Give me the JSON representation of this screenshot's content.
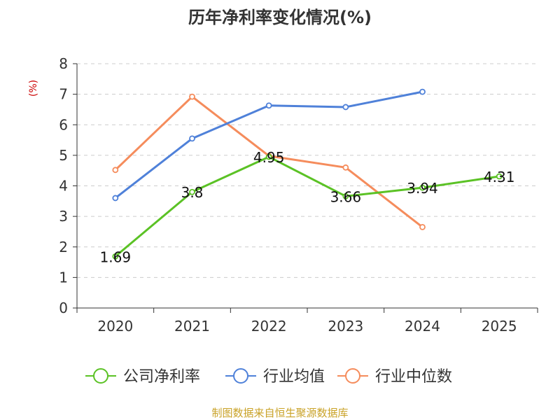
{
  "chart_data": {
    "type": "line",
    "title": "历年净利率变化情况(%)",
    "ylabel": "(%)",
    "xlabel": "",
    "categories": [
      "2020",
      "2021",
      "2022",
      "2023",
      "2024",
      "2025"
    ],
    "ylim": [
      0,
      8
    ],
    "yticks": [
      "0",
      "1",
      "2",
      "3",
      "4",
      "5",
      "6",
      "7",
      "8"
    ],
    "grid": true,
    "legend_position": "bottom",
    "series": [
      {
        "name": "公司净利率",
        "color": "#5bc225",
        "values": [
          1.69,
          3.8,
          4.95,
          3.66,
          3.94,
          4.31
        ],
        "labels": [
          "1.69",
          "3.8",
          "4.95",
          "3.66",
          "3.94",
          "4.31"
        ]
      },
      {
        "name": "行业均值",
        "color": "#4f81d9",
        "values": [
          3.6,
          5.55,
          6.63,
          6.58,
          7.08,
          null
        ],
        "labels": null
      },
      {
        "name": "行业中位数",
        "color": "#f58c5c",
        "values": [
          4.52,
          6.92,
          4.98,
          4.6,
          2.65,
          null
        ],
        "labels": null
      }
    ]
  },
  "source_note": "制图数据来自恒生聚源数据库",
  "colors": {
    "grid": "#cccccc",
    "axis": "#333333",
    "text": "#333333",
    "ylabel": "#cc0000",
    "source": "#c9a227"
  }
}
